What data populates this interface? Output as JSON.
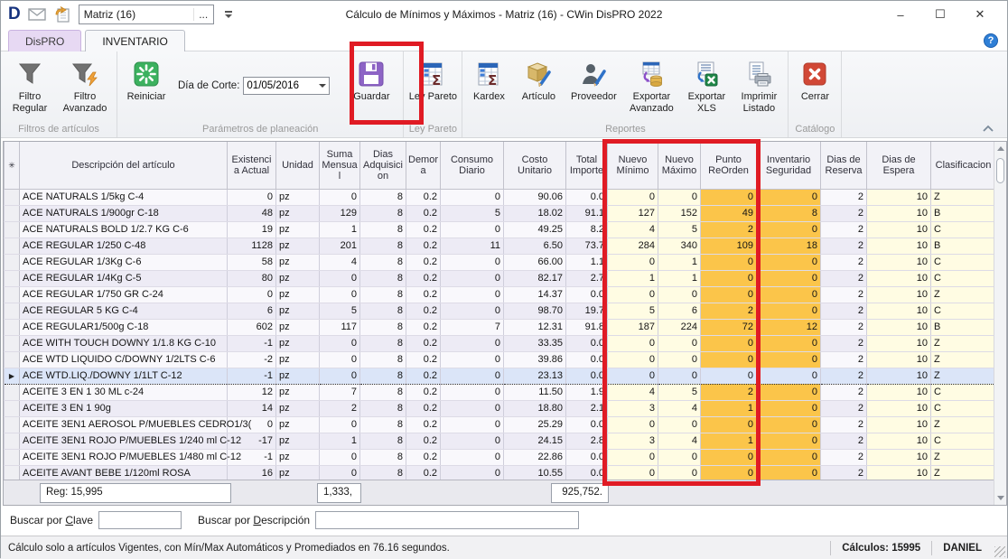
{
  "window": {
    "logo": "D",
    "doc_selector": {
      "value": "Matriz (16)",
      "ellipsis": "..."
    },
    "title": "Cálculo de Mínimos y Máximos - Matriz (16) - CWin DisPRO 2022",
    "controls": {
      "minimize": "–",
      "maximize": "☐",
      "close": "✕"
    },
    "help": "?"
  },
  "tabs": [
    {
      "label": "DisPRO",
      "active": false
    },
    {
      "label": "INVENTARIO",
      "active": true
    }
  ],
  "ribbon": {
    "filtro_regular": "Filtro Regular",
    "filtro_avanzado": "Filtro Avanzado",
    "group_filtros": "Filtros de artículos",
    "reiniciar": "Reiniciar",
    "dia_de_corte_label": "Día de Corte:",
    "dia_de_corte_value": "01/05/2016",
    "guardar": "Guardar",
    "group_parametros": "Parámetros de planeación",
    "ley_pareto": "Ley Pareto",
    "group_ley_pareto": "Ley Pareto",
    "kardex": "Kardex",
    "articulo": "Artículo",
    "proveedor": "Proveedor",
    "exportar_avanzado": "Exportar Avanzado",
    "exportar_xls": "Exportar XLS",
    "imprimir_listado": "Imprimir Listado",
    "group_reportes": "Reportes",
    "cerrar": "Cerrar",
    "group_catalogo": "Catálogo"
  },
  "grid": {
    "columns": [
      "✳",
      "Descripción del artículo",
      "Existencia Actual",
      "Unidad",
      "Suma Mensual",
      "Dias Adquisicion",
      "Demora",
      "Consumo Diario",
      "Costo Unitario",
      "Total Importe",
      "Nuevo Mínimo",
      "Nuevo Máximo",
      "Punto ReOrden",
      "Inventario Seguridad",
      "Dias de Reserva",
      "Dias de Espera",
      "Clasificacion"
    ],
    "rows": [
      [
        "ACE NATURALS 1/5kg C-4",
        "0",
        "pz",
        "0",
        "8",
        "0.2",
        "0",
        "90.06",
        "0.0",
        "0",
        "0",
        "0",
        "0",
        "2",
        "10",
        "Z"
      ],
      [
        "ACE NATURALS 1/900gr C-18",
        "48",
        "pz",
        "129",
        "8",
        "0.2",
        "5",
        "18.02",
        "91.1",
        "127",
        "152",
        "49",
        "8",
        "2",
        "10",
        "B"
      ],
      [
        "ACE NATURALS BOLD 1/2.7 KG C-6",
        "19",
        "pz",
        "1",
        "8",
        "0.2",
        "0",
        "49.25",
        "8.2",
        "4",
        "5",
        "2",
        "0",
        "2",
        "10",
        "C"
      ],
      [
        "ACE REGULAR 1/250 C-48",
        "1128",
        "pz",
        "201",
        "8",
        "0.2",
        "11",
        "6.50",
        "73.7",
        "284",
        "340",
        "109",
        "18",
        "2",
        "10",
        "B"
      ],
      [
        "ACE REGULAR 1/3Kg  C-6",
        "58",
        "pz",
        "4",
        "8",
        "0.2",
        "0",
        "66.00",
        "1.1",
        "0",
        "1",
        "0",
        "0",
        "2",
        "10",
        "C"
      ],
      [
        "ACE REGULAR 1/4Kg C-5",
        "80",
        "pz",
        "0",
        "8",
        "0.2",
        "0",
        "82.17",
        "2.7",
        "1",
        "1",
        "0",
        "0",
        "2",
        "10",
        "C"
      ],
      [
        "ACE REGULAR 1/750 GR C-24",
        "0",
        "pz",
        "0",
        "8",
        "0.2",
        "0",
        "14.37",
        "0.0",
        "0",
        "0",
        "0",
        "0",
        "2",
        "10",
        "Z"
      ],
      [
        "ACE REGULAR 5 KG  C-4",
        "6",
        "pz",
        "5",
        "8",
        "0.2",
        "0",
        "98.70",
        "19.7",
        "5",
        "6",
        "2",
        "0",
        "2",
        "10",
        "C"
      ],
      [
        "ACE REGULAR1/500g C-18",
        "602",
        "pz",
        "117",
        "8",
        "0.2",
        "7",
        "12.31",
        "91.8",
        "187",
        "224",
        "72",
        "12",
        "2",
        "10",
        "B"
      ],
      [
        "ACE WITH TOUCH DOWNY 1/1.8 KG C-10",
        "-1",
        "pz",
        "0",
        "8",
        "0.2",
        "0",
        "33.35",
        "0.0",
        "0",
        "0",
        "0",
        "0",
        "2",
        "10",
        "Z"
      ],
      [
        "ACE WTD LIQUIDO C/DOWNY 1/2LTS C-6",
        "-2",
        "pz",
        "0",
        "8",
        "0.2",
        "0",
        "39.86",
        "0.0",
        "0",
        "0",
        "0",
        "0",
        "2",
        "10",
        "Z"
      ],
      [
        "ACE WTD.LIQ./DOWNY 1/1LT C-12",
        "-1",
        "pz",
        "0",
        "8",
        "0.2",
        "0",
        "23.13",
        "0.0",
        "0",
        "0",
        "0",
        "0",
        "2",
        "10",
        "Z"
      ],
      [
        "ACEITE 3 EN 1 30 ML c-24",
        "12",
        "pz",
        "7",
        "8",
        "0.2",
        "0",
        "11.50",
        "1.9",
        "4",
        "5",
        "2",
        "0",
        "2",
        "10",
        "C"
      ],
      [
        "ACEITE 3 EN 1 90g",
        "14",
        "pz",
        "2",
        "8",
        "0.2",
        "0",
        "18.80",
        "2.1",
        "3",
        "4",
        "1",
        "0",
        "2",
        "10",
        "C"
      ],
      [
        "ACEITE 3EN1 AEROSOL P/MUEBLES CEDRO1/3(",
        "0",
        "pz",
        "0",
        "8",
        "0.2",
        "0",
        "25.29",
        "0.0",
        "0",
        "0",
        "0",
        "0",
        "2",
        "10",
        "Z"
      ],
      [
        "ACEITE 3EN1 ROJO P/MUEBLES 1/240 ml C-12",
        "-17",
        "pz",
        "1",
        "8",
        "0.2",
        "0",
        "24.15",
        "2.8",
        "3",
        "4",
        "1",
        "0",
        "2",
        "10",
        "C"
      ],
      [
        "ACEITE 3EN1 ROJO P/MUEBLES 1/480 ml C-12",
        "-1",
        "pz",
        "0",
        "8",
        "0.2",
        "0",
        "22.86",
        "0.0",
        "0",
        "0",
        "0",
        "0",
        "2",
        "10",
        "Z"
      ],
      [
        "ACEITE AVANT BEBE 1/120ml ROSA",
        "16",
        "pz",
        "0",
        "8",
        "0.2",
        "0",
        "10.55",
        "0.0",
        "0",
        "0",
        "0",
        "0",
        "2",
        "10",
        "Z"
      ]
    ],
    "selected_row": 11,
    "selected_marker": "▶",
    "footer": {
      "reg": "Reg: 15,995",
      "suma": "1,333,",
      "importe": "925,752."
    }
  },
  "search": {
    "clave": {
      "pre": "Buscar por ",
      "accel": "C",
      "rest": "lave"
    },
    "descripcion": {
      "pre": "Buscar por ",
      "accel": "D",
      "rest": "escripción"
    }
  },
  "statusbar": {
    "message": "Cálculo solo a artículos Vigentes, con Mín/Max Automáticos y Promediados en 76.16 segundos.",
    "calculos": "Cálculos: 15995",
    "user": "DANIEL"
  },
  "colors": {
    "annotation_red": "#e01b24",
    "orange_column": "#fbc54a",
    "yellow_column": "#fffce3",
    "selected_row": "#dbe5f8",
    "guardar_purple": "#8d64c5",
    "cerrar_red": "#d14836",
    "reiniciar_green": "#3cb15f"
  }
}
